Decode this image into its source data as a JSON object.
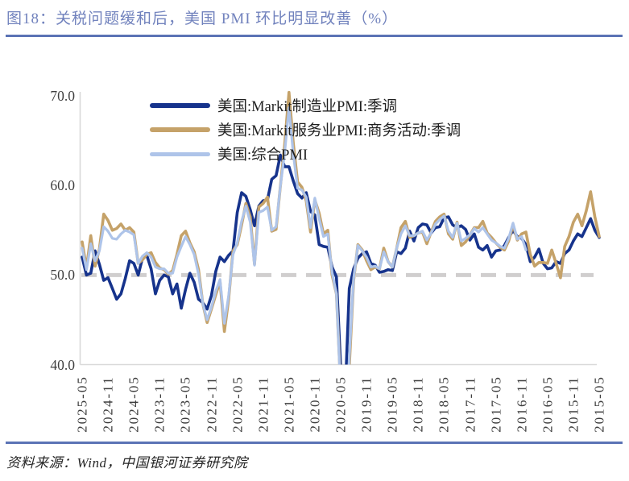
{
  "title": "图18：关税问题缓和后，美国 PMI 环比明显改善（%）",
  "footer": "资料来源：Wind，中国银河证券研究院",
  "colors": {
    "title_text": "#7182BD",
    "divider_rule": "#5B73B5",
    "axis_line": "#D9D9D9",
    "reference_dash": "#D0CECE",
    "tick_text": "#3F3F3F",
    "legend_text": "#1F1F1F",
    "footer_text": "#262626"
  },
  "chart_data": {
    "type": "line",
    "title": "图18：关税问题缓和后，美国 PMI 环比明显改善（%）",
    "unit": "%",
    "grid": "off",
    "legend_position": "top-center",
    "ylim": [
      40.0,
      70.4
    ],
    "reference_line": 50.0,
    "y_ticks": [
      {
        "label": "70.0",
        "value": 70.0
      },
      {
        "label": "60.0",
        "value": 60.0
      },
      {
        "label": "50.0",
        "value": 50.0
      },
      {
        "label": "40.0",
        "value": 40.0
      }
    ],
    "x_axis_reversed": true,
    "x_order_note": "x axis displays newest month on the left: 2025-05 at left edge, 2015-05 at right edge",
    "x_tick_labels": [
      "2025-05",
      "2024-11",
      "2024-05",
      "2023-11",
      "2023-05",
      "2022-11",
      "2022-05",
      "2021-11",
      "2021-05",
      "2020-11",
      "2020-05",
      "2019-11",
      "2019-05",
      "2018-11",
      "2018-05",
      "2017-11",
      "2017-05",
      "2016-11",
      "2016-05",
      "2015-11",
      "2015-05"
    ],
    "x_monthly_range_start": "2015-05",
    "x_monthly_range_end": "2025-05",
    "values_order": "chronological oldest-to-newest, one value per month (renderer reverses for display)",
    "series": [
      {
        "name": "美国:Markit制造业PMI:季调",
        "color": "#16338C",
        "values": [
          54.2,
          55.0,
          56.3,
          55.3,
          54.3,
          54.6,
          53.8,
          52.8,
          52.4,
          51.3,
          51.5,
          50.8,
          50.7,
          51.3,
          52.9,
          52.0,
          51.5,
          53.4,
          54.1,
          54.3,
          55.0,
          54.2,
          53.3,
          52.8,
          52.7,
          52.0,
          53.3,
          52.8,
          53.1,
          54.6,
          53.9,
          55.1,
          55.5,
          55.3,
          55.6,
          56.5,
          56.4,
          55.4,
          55.3,
          54.7,
          55.6,
          55.7,
          55.3,
          53.8,
          54.9,
          53.0,
          52.4,
          52.6,
          50.5,
          50.6,
          50.4,
          50.3,
          51.1,
          51.3,
          52.6,
          52.4,
          51.9,
          50.7,
          48.5,
          36.1,
          39.8,
          49.8,
          50.9,
          53.1,
          53.2,
          53.4,
          56.7,
          57.1,
          59.2,
          58.6,
          59.1,
          60.5,
          62.1,
          62.1,
          63.4,
          61.1,
          60.7,
          58.4,
          58.3,
          57.7,
          55.5,
          57.3,
          58.8,
          59.2,
          57.0,
          52.7,
          52.2,
          51.5,
          52.0,
          50.4,
          47.7,
          46.2,
          46.9,
          47.3,
          49.2,
          50.2,
          48.4,
          46.3,
          49.0,
          47.9,
          49.8,
          50.0,
          49.4,
          47.9,
          50.7,
          52.2,
          51.9,
          50.0,
          51.3,
          51.6,
          49.6,
          47.9,
          47.3,
          48.5,
          49.7,
          49.4,
          51.2,
          52.7,
          50.2,
          50.0,
          52.0
        ]
      },
      {
        "name": "美国:Markit服务业PMI:商务活动:季调",
        "color": "#C5A269",
        "values": [
          54.3,
          56.5,
          59.3,
          57.2,
          55.5,
          56.8,
          55.9,
          54.3,
          53.2,
          49.7,
          51.3,
          52.8,
          51.3,
          51.4,
          51.4,
          51.0,
          52.3,
          54.8,
          54.6,
          53.9,
          55.6,
          53.8,
          52.8,
          53.1,
          53.6,
          54.2,
          54.7,
          56.0,
          55.3,
          55.3,
          54.5,
          53.7,
          53.3,
          55.9,
          54.0,
          54.6,
          56.8,
          56.5,
          56.0,
          54.8,
          53.5,
          54.8,
          54.7,
          54.4,
          54.2,
          56.0,
          55.3,
          53.0,
          50.9,
          51.5,
          53.0,
          50.7,
          50.9,
          50.6,
          51.6,
          52.8,
          53.4,
          49.4,
          39.8,
          26.7,
          37.5,
          47.9,
          50.0,
          55.0,
          54.6,
          56.9,
          58.4,
          54.8,
          58.3,
          59.8,
          60.4,
          64.7,
          70.4,
          64.6,
          59.9,
          55.1,
          54.9,
          58.7,
          58.0,
          57.6,
          51.2,
          56.5,
          58.0,
          55.6,
          53.4,
          52.7,
          47.3,
          43.7,
          49.3,
          47.8,
          46.2,
          44.7,
          46.8,
          50.6,
          52.6,
          53.6,
          54.9,
          54.4,
          52.3,
          50.5,
          50.1,
          50.6,
          50.8,
          51.4,
          52.5,
          52.3,
          51.7,
          51.3,
          54.8,
          55.3,
          55.0,
          55.7,
          55.2,
          55.0,
          56.1,
          56.8,
          52.9,
          51.0,
          54.4,
          50.8,
          53.7
        ]
      },
      {
        "name": "美国:综合PMI",
        "color": "#AEC4E9",
        "values": [
          null,
          null,
          null,
          null,
          null,
          null,
          null,
          null,
          null,
          null,
          null,
          null,
          null,
          null,
          null,
          null,
          null,
          52.8,
          54.3,
          54.0,
          55.8,
          54.1,
          53.0,
          53.2,
          53.6,
          53.9,
          54.6,
          55.3,
          54.8,
          55.2,
          54.5,
          54.1,
          53.8,
          55.8,
          54.2,
          54.9,
          56.6,
          56.2,
          55.7,
          54.7,
          53.9,
          54.9,
          54.7,
          54.4,
          54.4,
          55.5,
          54.6,
          53.0,
          50.9,
          51.5,
          52.6,
          50.7,
          51.0,
          50.9,
          52.0,
          52.7,
          53.3,
          49.6,
          40.9,
          27.0,
          37.0,
          47.9,
          50.3,
          54.6,
          54.3,
          56.3,
          58.6,
          55.3,
          58.7,
          59.5,
          59.7,
          63.5,
          68.7,
          63.7,
          59.9,
          55.4,
          55.0,
          57.6,
          57.2,
          57.0,
          51.1,
          55.9,
          57.7,
          56.0,
          53.6,
          52.3,
          47.7,
          44.6,
          49.5,
          48.2,
          46.4,
          45.0,
          46.8,
          50.1,
          52.3,
          53.4,
          54.3,
          53.2,
          52.0,
          50.2,
          50.2,
          50.7,
          50.7,
          50.9,
          52.0,
          52.5,
          52.1,
          51.3,
          54.5,
          54.8,
          55.0,
          54.6,
          54.0,
          54.1,
          54.9,
          55.4,
          52.7,
          51.6,
          53.5,
          50.6,
          53.0
        ]
      }
    ]
  }
}
